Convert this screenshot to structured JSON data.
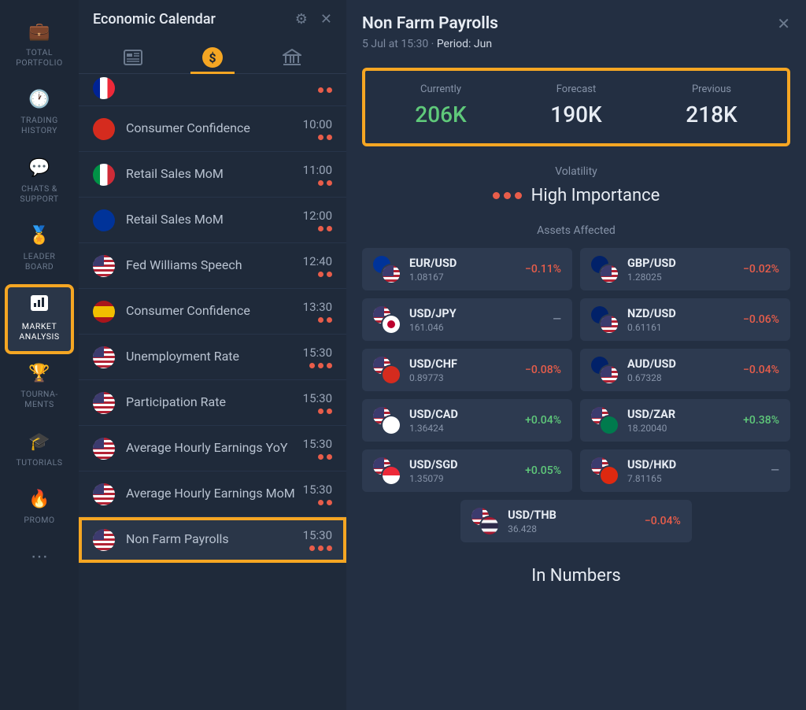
{
  "nav": {
    "items": [
      {
        "label": "TOTAL\nPORTFOLIO",
        "icon": "💼"
      },
      {
        "label": "TRADING\nHISTORY",
        "icon": "🕐"
      },
      {
        "label": "CHATS &\nSUPPORT",
        "icon": "💬"
      },
      {
        "label": "LEADER\nBOARD",
        "icon": "🏅"
      },
      {
        "label": "MARKET\nANALYSIS",
        "icon": "",
        "active": true,
        "highlight": true
      },
      {
        "label": "TOURNA-\nMENTS",
        "icon": "🏆"
      },
      {
        "label": "TUTORIALS",
        "icon": "🎓"
      },
      {
        "label": "PROMO",
        "icon": "🔥"
      },
      {
        "label": "",
        "icon": "⋯"
      }
    ]
  },
  "calendar": {
    "title": "Economic Calendar",
    "tabs": [
      {
        "icon": "news",
        "active": false
      },
      {
        "icon": "dollar",
        "active": true
      },
      {
        "icon": "bank",
        "active": false
      }
    ],
    "events": [
      {
        "flag": "fr",
        "name": "",
        "time": "",
        "dots": 2
      },
      {
        "flag": "ch",
        "name": "Consumer Confidence",
        "time": "10:00",
        "dots": 2
      },
      {
        "flag": "it",
        "name": "Retail Sales MoM",
        "time": "11:00",
        "dots": 2
      },
      {
        "flag": "eu",
        "name": "Retail Sales MoM",
        "time": "12:00",
        "dots": 2
      },
      {
        "flag": "us",
        "name": "Fed Williams Speech",
        "time": "12:40",
        "dots": 2
      },
      {
        "flag": "es",
        "name": "Consumer Confidence",
        "time": "13:30",
        "dots": 2
      },
      {
        "flag": "us",
        "name": "Unemployment Rate",
        "time": "15:30",
        "dots": 3
      },
      {
        "flag": "us",
        "name": "Participation Rate",
        "time": "15:30",
        "dots": 2
      },
      {
        "flag": "us",
        "name": "Average Hourly Earnings YoY",
        "time": "15:30",
        "dots": 2
      },
      {
        "flag": "us",
        "name": "Average Hourly Earnings MoM",
        "time": "15:30",
        "dots": 2
      },
      {
        "flag": "us",
        "name": "Non Farm Payrolls",
        "time": "15:30",
        "dots": 3,
        "highlight": true
      }
    ]
  },
  "detail": {
    "title": "Non Farm Payrolls",
    "datetime": "5 Jul at 15:30",
    "period_label": "Period: Jun",
    "stats": [
      {
        "label": "Currently",
        "value": "206K",
        "color": "green"
      },
      {
        "label": "Forecast",
        "value": "190K",
        "color": ""
      },
      {
        "label": "Previous",
        "value": "218K",
        "color": ""
      }
    ],
    "volatility_label": "Volatility",
    "importance_text": "High Importance",
    "importance_dots": 3,
    "assets_label": "Assets Affected",
    "assets": [
      {
        "flag1": "eu",
        "flag2": "us",
        "sym": "EUR/USD",
        "price": "1.08167",
        "chg": "−0.11%",
        "dir": "neg"
      },
      {
        "flag1": "gb",
        "flag2": "us",
        "sym": "GBP/USD",
        "price": "1.28025",
        "chg": "−0.02%",
        "dir": "neg"
      },
      {
        "flag1": "us",
        "flag2": "jp",
        "sym": "USD/JPY",
        "price": "161.046",
        "chg": "—",
        "dir": "neu"
      },
      {
        "flag1": "nz",
        "flag2": "us",
        "sym": "NZD/USD",
        "price": "0.61161",
        "chg": "−0.06%",
        "dir": "neg"
      },
      {
        "flag1": "us",
        "flag2": "ch",
        "sym": "USD/CHF",
        "price": "0.89773",
        "chg": "−0.08%",
        "dir": "neg"
      },
      {
        "flag1": "au",
        "flag2": "us",
        "sym": "AUD/USD",
        "price": "0.67328",
        "chg": "−0.04%",
        "dir": "neg"
      },
      {
        "flag1": "us",
        "flag2": "ca",
        "sym": "USD/CAD",
        "price": "1.36424",
        "chg": "+0.04%",
        "dir": "pos"
      },
      {
        "flag1": "us",
        "flag2": "za",
        "sym": "USD/ZAR",
        "price": "18.20040",
        "chg": "+0.38%",
        "dir": "pos"
      },
      {
        "flag1": "us",
        "flag2": "sg",
        "sym": "USD/SGD",
        "price": "1.35079",
        "chg": "+0.05%",
        "dir": "pos"
      },
      {
        "flag1": "us",
        "flag2": "hk",
        "sym": "USD/HKD",
        "price": "7.81165",
        "chg": "—",
        "dir": "neu"
      },
      {
        "flag1": "us",
        "flag2": "th",
        "sym": "USD/THB",
        "price": "36.428",
        "chg": "−0.04%",
        "dir": "neg",
        "single": true
      }
    ],
    "in_numbers": "In Numbers"
  }
}
